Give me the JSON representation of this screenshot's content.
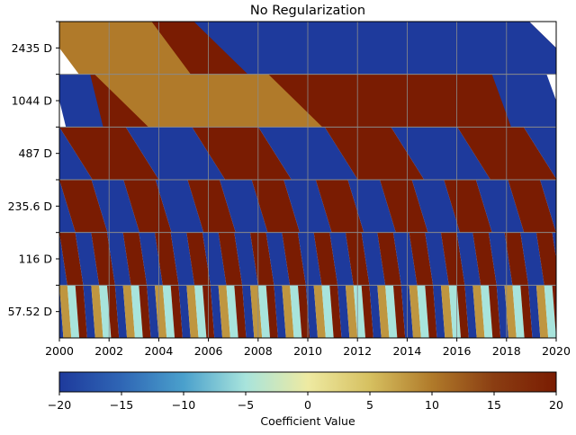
{
  "chart_data": {
    "type": "heatmap",
    "title": "No Regularization",
    "xlabel": "",
    "ylabel": "",
    "xlim": [
      2000,
      2020
    ],
    "x_ticks": [
      "2000",
      "2002",
      "2004",
      "2006",
      "2008",
      "2010",
      "2012",
      "2014",
      "2016",
      "2018",
      "2020"
    ],
    "rows": [
      {
        "label": "2435 D",
        "period_days": 2435,
        "segments": [
          {
            "x": [
              2000,
              2020
            ],
            "value": 20
          },
          {
            "x": [
              2000,
              2004.5
            ],
            "value": 10
          },
          {
            "x": [
              2006.5,
              2020
            ],
            "value": -20
          }
        ]
      },
      {
        "label": "1044 D",
        "period_days": 1044,
        "segments": [
          {
            "x": [
              2000,
              2020
            ],
            "value": 20
          },
          {
            "x": [
              2002.5,
              2009.5
            ],
            "value": 10
          },
          {
            "x": [
              2000,
              2001.5
            ],
            "value": -20
          },
          {
            "x": [
              2017.8,
              2020
            ],
            "value": -20
          }
        ]
      },
      {
        "label": "487 D",
        "period_days": 487,
        "phase_values": [
          20,
          -20
        ],
        "band_width_years": 2.67
      },
      {
        "label": "235.6 D",
        "period_days": 235.6,
        "phase_values": [
          20,
          -20
        ],
        "band_width_years": 1.29
      },
      {
        "label": "116 D",
        "period_days": 116,
        "phase_values": [
          20,
          -20
        ],
        "band_width_years": 0.64
      },
      {
        "label": "57.52 D",
        "period_days": 57.52,
        "phase_values": [
          20,
          -20,
          8,
          -5
        ],
        "band_width_years": 0.32
      }
    ],
    "colorbar": {
      "label": "Coefficient Value",
      "range": [
        -20,
        20
      ],
      "ticks": [
        "−20",
        "−15",
        "−10",
        "−5",
        "0",
        "5",
        "10",
        "15",
        "20"
      ],
      "colors": [
        "#1e3a9c",
        "#2f66b5",
        "#4aa0cc",
        "#a8e4dc",
        "#eeeaa2",
        "#d6c060",
        "#b07a2a",
        "#8a3d12",
        "#7a1c02"
      ]
    },
    "grid": true,
    "legend": "none"
  }
}
